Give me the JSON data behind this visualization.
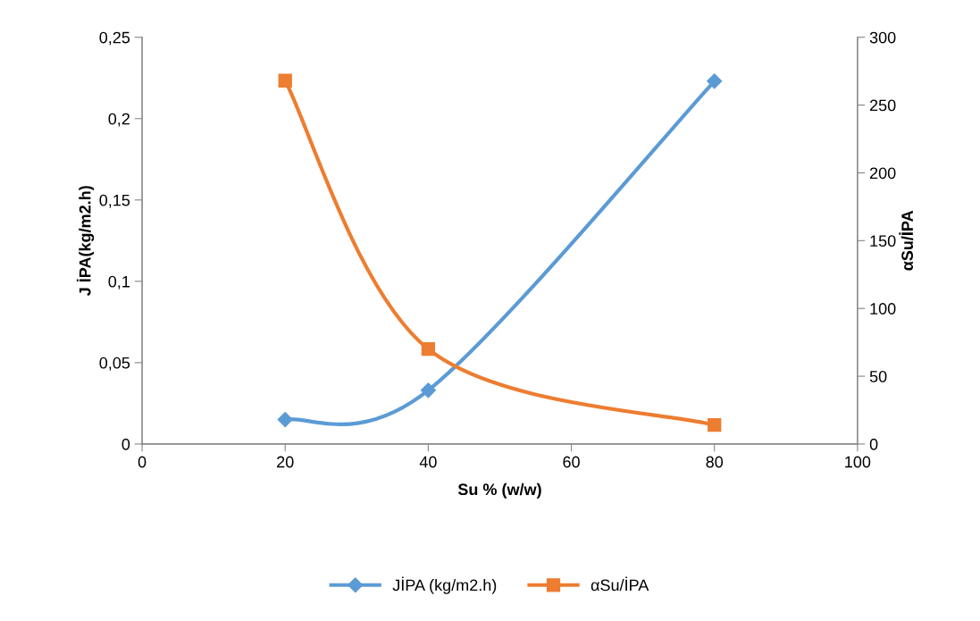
{
  "chart_data": {
    "type": "line",
    "x": [
      20,
      40,
      80
    ],
    "xlabel": "Su % (w/w)",
    "ylabel": "J İPA(kg/m2.h)",
    "y2label": "αSu/İPA",
    "series": [
      {
        "name": "JİPA (kg/m2.h)",
        "color": "#5b9bd5",
        "values": [
          0.015,
          0.033,
          0.223
        ],
        "marker": "diamond"
      },
      {
        "name": "αSu/İPA",
        "color": "#ed7d31",
        "values": [
          268,
          70,
          14
        ],
        "marker": "square",
        "axis": "y2"
      }
    ],
    "xlim": [
      0,
      100
    ],
    "xticks": [
      0,
      20,
      40,
      60,
      80,
      100
    ],
    "ylim": [
      0,
      0.25
    ],
    "yticks": [
      {
        "value": 0,
        "label": "0"
      },
      {
        "value": 0.05,
        "label": "0,05"
      },
      {
        "value": 0.1,
        "label": "0,1"
      },
      {
        "value": 0.15,
        "label": "0,15"
      },
      {
        "value": 0.2,
        "label": "0,2"
      },
      {
        "value": 0.25,
        "label": "0,25"
      }
    ],
    "y2lim": [
      0,
      300
    ],
    "y2ticks": [
      0,
      50,
      100,
      150,
      200,
      250,
      300
    ],
    "grid": false,
    "legend": "bottom",
    "line_style": "solid"
  }
}
